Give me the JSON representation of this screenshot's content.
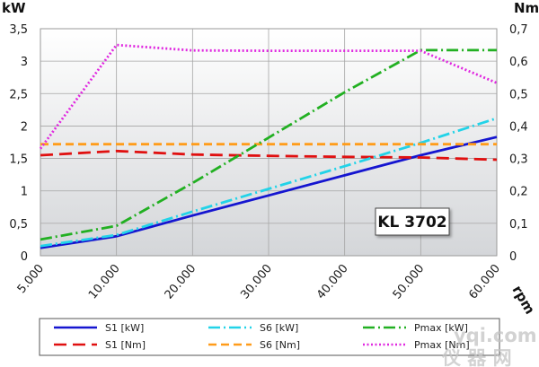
{
  "chart_data": {
    "type": "line",
    "title": "",
    "model_label": "KL 3702",
    "xlabel": "rpm",
    "ylabel_left": "kW",
    "ylabel_right": "Nm",
    "x_categories": [
      "5.000",
      "10.000",
      "20.000",
      "30.000",
      "40.000",
      "50.000",
      "60.000"
    ],
    "x_positions": [
      5000,
      10000,
      20000,
      30000,
      40000,
      50000,
      60000
    ],
    "x_scale": "piecewise",
    "y_left_ticks": [
      "0",
      "0,5",
      "1",
      "1,5",
      "2",
      "2,5",
      "3",
      "3,5"
    ],
    "y_right_ticks": [
      "0",
      "0,1",
      "0,2",
      "0,3",
      "0,4",
      "0,5",
      "0,6",
      "0,7"
    ],
    "ylim_left": [
      0,
      3.5
    ],
    "ylim_right": [
      0,
      0.7
    ],
    "grid": true,
    "legend_position": "bottom",
    "series": [
      {
        "name": "S1 [kW]",
        "axis": "left",
        "color": "#1515d0",
        "dash": "solid",
        "points": [
          [
            5000,
            0.12
          ],
          [
            10000,
            0.3
          ],
          [
            20000,
            0.62
          ],
          [
            30000,
            0.93
          ],
          [
            40000,
            1.24
          ],
          [
            50000,
            1.55
          ],
          [
            60000,
            1.83
          ]
        ]
      },
      {
        "name": "S1 [Nm]",
        "axis": "right",
        "color": "#e01010",
        "dash": "long-dash",
        "points": [
          [
            5000,
            0.31
          ],
          [
            10000,
            0.323
          ],
          [
            20000,
            0.312
          ],
          [
            30000,
            0.308
          ],
          [
            40000,
            0.305
          ],
          [
            50000,
            0.303
          ],
          [
            60000,
            0.296
          ]
        ]
      },
      {
        "name": "S6 [kW]",
        "axis": "left",
        "color": "#22d3e8",
        "dash": "dash-dot",
        "points": [
          [
            5000,
            0.15
          ],
          [
            10000,
            0.32
          ],
          [
            20000,
            0.68
          ],
          [
            30000,
            1.03
          ],
          [
            40000,
            1.38
          ],
          [
            50000,
            1.74
          ],
          [
            60000,
            2.12
          ]
        ]
      },
      {
        "name": "S6 [Nm]",
        "axis": "right",
        "color": "#ff9c1a",
        "dash": "dash",
        "points": [
          [
            5000,
            0.344
          ],
          [
            10000,
            0.344
          ],
          [
            20000,
            0.344
          ],
          [
            30000,
            0.344
          ],
          [
            40000,
            0.344
          ],
          [
            50000,
            0.344
          ],
          [
            60000,
            0.344
          ]
        ]
      },
      {
        "name": "Pmax [kW]",
        "axis": "left",
        "color": "#22b022",
        "dash": "dash-dot",
        "points": [
          [
            5000,
            0.25
          ],
          [
            10000,
            0.46
          ],
          [
            20000,
            1.12
          ],
          [
            30000,
            1.82
          ],
          [
            40000,
            2.52
          ],
          [
            50000,
            3.17
          ],
          [
            60000,
            3.17
          ]
        ]
      },
      {
        "name": "Pmax [Nm]",
        "axis": "right",
        "color": "#e028e0",
        "dash": "dot",
        "points": [
          [
            5000,
            0.33
          ],
          [
            10000,
            0.65
          ],
          [
            20000,
            0.633
          ],
          [
            30000,
            0.632
          ],
          [
            40000,
            0.632
          ],
          [
            50000,
            0.632
          ],
          [
            60000,
            0.533
          ]
        ]
      }
    ]
  },
  "legend": {
    "items": [
      "S1 [kW]",
      "S6 [kW]",
      "Pmax [kW]",
      "S1 [Nm]",
      "S6 [Nm]",
      "Pmax [Nm]"
    ]
  },
  "watermark": {
    "line1": "yqi.com",
    "line2": "仪 器 网"
  }
}
